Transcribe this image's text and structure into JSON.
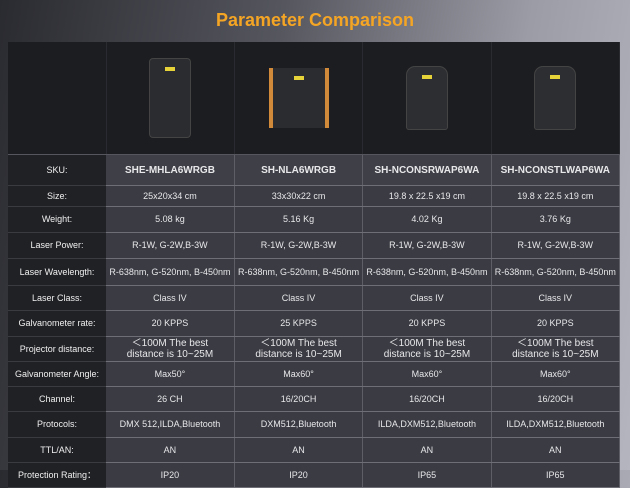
{
  "title": "Parameter Comparison",
  "labels": [
    "SKU:",
    "Size:",
    "Weight:",
    "Laser Power:",
    "Laser Wavelength:",
    "Laser Class:",
    "Galvanometer rate:",
    "Projector distance:",
    "Galvanometer Angle:",
    "Channel:",
    "Protocols:",
    "TTL/AN:",
    "Protection Rating："
  ],
  "products": [
    {
      "values": [
        "SHE-MHLA6WRGB",
        "25x20x34 cm",
        "5.08 kg",
        "R-1W, G-2W,B-3W",
        "R-638nm, G-520nm, B-450nm",
        "Class IV",
        "20 KPPS",
        "＜100M The best distance is 10~25M",
        "Max50°",
        "26 CH",
        "DMX 512,ILDA,Bluetooth",
        "AN",
        "IP20"
      ]
    },
    {
      "values": [
        "SH-NLA6WRGB",
        "33x30x22 cm",
        "5.16 Kg",
        "R-1W, G-2W,B-3W",
        "R-638nm, G-520nm, B-450nm",
        "Class IV",
        "25 KPPS",
        "＜100M The best distance is 10~25M",
        "Max60°",
        "16/20CH",
        "DXM512,Bluetooth",
        "AN",
        "IP20"
      ]
    },
    {
      "values": [
        "SH-NCONSRWAP6WA",
        "19.8 x 22.5 x19 cm",
        "4.02 Kg",
        "R-1W, G-2W,B-3W",
        "R-638nm, G-520nm, B-450nm",
        "Class IV",
        "20 KPPS",
        "＜100M The best distance is 10~25M",
        "Max60°",
        "16/20CH",
        "ILDA,DXM512,Bluetooth",
        "AN",
        "IP65"
      ]
    },
    {
      "values": [
        "SH-NCONSTLWAP6WA",
        "19.8 x 22.5 x19 cm",
        "3.76 Kg",
        "R-1W, G-2W,B-3W",
        "R-638nm, G-520nm, B-450nm",
        "Class IV",
        "20 KPPS",
        "＜100M The best distance is 10~25M",
        "Max60°",
        "16/20CH",
        "ILDA,DXM512,Bluetooth",
        "AN",
        "IP65"
      ]
    }
  ]
}
